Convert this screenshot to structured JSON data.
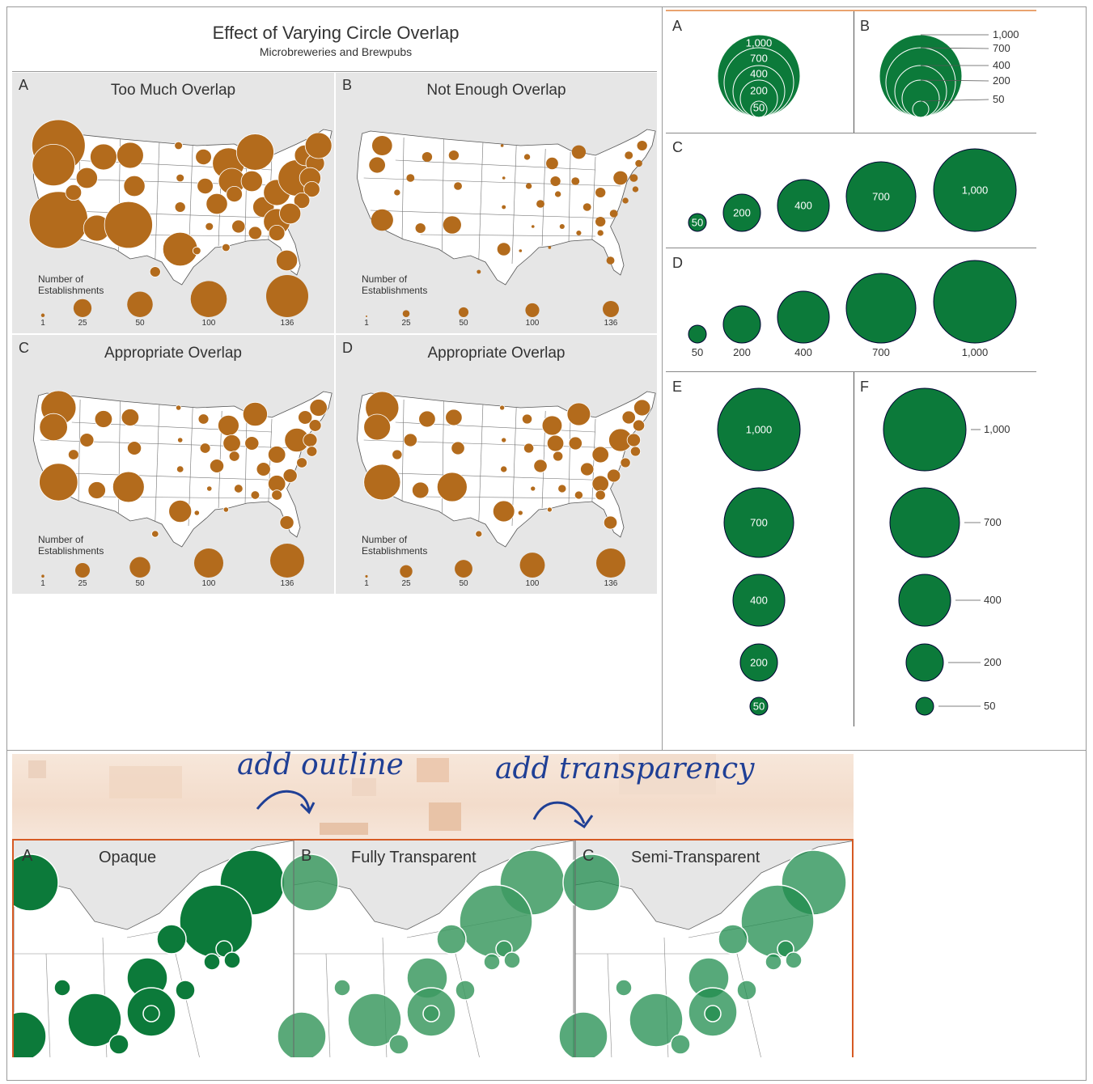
{
  "main_title": "Effect of Varying Circle Overlap",
  "subtitle": "Microbreweries and Brewpubs",
  "maps": [
    {
      "letter": "A",
      "title": "Too Much Overlap"
    },
    {
      "letter": "B",
      "title": "Not Enough Overlap"
    },
    {
      "letter": "C",
      "title": "Appropriate Overlap"
    },
    {
      "letter": "D",
      "title": "Appropriate Overlap"
    }
  ],
  "legend": {
    "heading_line1": "Number of",
    "heading_line2": "Establishments",
    "ticks": [
      "1",
      "25",
      "50",
      "100",
      "136"
    ]
  },
  "legend_scale": {
    "panel_A": [
      1,
      25,
      50,
      100,
      136
    ],
    "panel_B": [
      1,
      25,
      50,
      100,
      136
    ],
    "panel_C": [
      1,
      25,
      50,
      100,
      136
    ],
    "panel_D": [
      1,
      25,
      50,
      100,
      136
    ]
  },
  "colors": {
    "brown": "#b36b1c",
    "green": "#0c7a3a",
    "frame_orange": "#d65a23",
    "handwriting": "#1f3f95"
  },
  "green_panels": {
    "A_letter": "A",
    "B_letter": "B",
    "C_letter": "C",
    "D_letter": "D",
    "E_letter": "E",
    "F_letter": "F",
    "values": [
      "1,000",
      "700",
      "400",
      "200",
      "50"
    ],
    "row_labels": [
      "50",
      "200",
      "400",
      "700",
      "1,000"
    ]
  },
  "bottom": {
    "annotation_left": "add outline",
    "annotation_right": "add transparency",
    "panels": [
      {
        "letter": "A",
        "title": "Opaque"
      },
      {
        "letter": "B",
        "title": "Fully Transparent"
      },
      {
        "letter": "C",
        "title": "Semi-Transparent"
      }
    ]
  }
}
